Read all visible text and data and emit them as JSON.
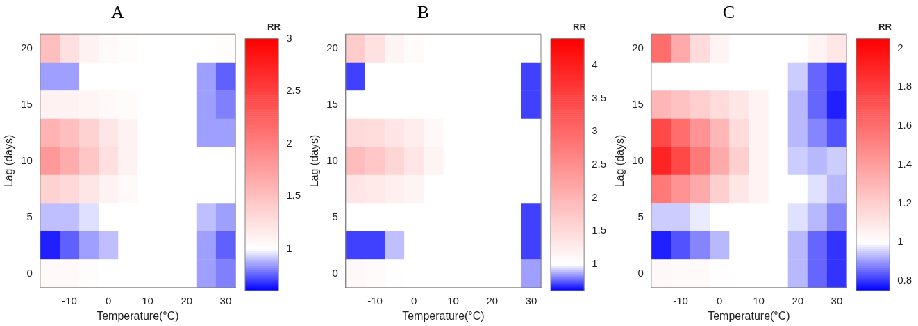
{
  "chart_data": [
    {
      "type": "heatmap",
      "title": "A",
      "xlabel": "Temperature(°C)",
      "ylabel": "Lag (days)",
      "clabel": "RR",
      "clim": [
        0.6,
        3.0
      ],
      "cticks": [
        1.0,
        1.5,
        2.0,
        2.5,
        3.0
      ],
      "categories": [
        null,
        "-10",
        null,
        "0",
        null,
        "10",
        null,
        "20",
        null,
        "30"
      ],
      "y_categories": [
        "20",
        null,
        "15",
        null,
        "10",
        null,
        "5",
        null,
        "0"
      ],
      "cells": [
        [
          1.5,
          1.25,
          1.1,
          1.05,
          1.02,
          1.0,
          1.0,
          1.0,
          1.0,
          1.02
        ],
        [
          0.85,
          0.85,
          1.0,
          1.0,
          1.0,
          1.0,
          1.0,
          1.0,
          0.85,
          0.75
        ],
        [
          1.1,
          1.1,
          1.08,
          1.05,
          1.03,
          1.0,
          1.0,
          1.0,
          0.85,
          0.8
        ],
        [
          1.6,
          1.5,
          1.35,
          1.2,
          1.1,
          1.0,
          1.0,
          1.0,
          0.85,
          0.85
        ],
        [
          1.8,
          1.65,
          1.45,
          1.25,
          1.1,
          1.0,
          1.0,
          1.0,
          1.0,
          1.0
        ],
        [
          1.35,
          1.3,
          1.2,
          1.1,
          1.05,
          1.0,
          1.0,
          1.0,
          1.0,
          1.0
        ],
        [
          0.9,
          0.9,
          0.95,
          1.0,
          1.0,
          1.0,
          1.0,
          1.0,
          0.9,
          0.85
        ],
        [
          0.65,
          0.75,
          0.85,
          0.9,
          1.0,
          1.0,
          1.0,
          1.0,
          0.85,
          0.75
        ],
        [
          1.05,
          1.05,
          1.02,
          1.0,
          1.0,
          1.0,
          1.0,
          1.0,
          0.85,
          0.8
        ]
      ]
    },
    {
      "type": "heatmap",
      "title": "B",
      "xlabel": "Temperature(°C)",
      "ylabel": "Lag (days)",
      "clabel": "RR",
      "clim": [
        0.6,
        4.4
      ],
      "cticks": [
        1.0,
        1.5,
        2.0,
        2.5,
        3.0,
        3.5,
        4.0
      ],
      "categories": [
        null,
        "-10",
        null,
        "0",
        null,
        "10",
        null,
        "20",
        null,
        "30"
      ],
      "y_categories": [
        "20",
        null,
        "15",
        null,
        "10",
        null,
        "5",
        null,
        "0"
      ],
      "cells": [
        [
          1.7,
          1.4,
          1.15,
          1.05,
          1.0,
          1.0,
          1.0,
          1.0,
          1.0,
          1.0
        ],
        [
          0.7,
          1.0,
          1.0,
          1.0,
          1.0,
          1.0,
          1.0,
          1.0,
          1.0,
          0.7
        ],
        [
          1.0,
          1.0,
          1.0,
          1.0,
          1.0,
          1.0,
          1.0,
          1.0,
          1.0,
          0.7
        ],
        [
          1.5,
          1.45,
          1.35,
          1.25,
          1.1,
          1.0,
          1.0,
          1.0,
          1.0,
          1.0
        ],
        [
          1.9,
          1.75,
          1.55,
          1.35,
          1.15,
          1.0,
          1.0,
          1.0,
          1.0,
          1.0
        ],
        [
          1.35,
          1.3,
          1.2,
          1.15,
          1.0,
          1.0,
          1.0,
          1.0,
          1.0,
          1.0
        ],
        [
          1.0,
          1.0,
          1.0,
          1.0,
          1.0,
          1.0,
          1.0,
          1.0,
          1.0,
          0.7
        ],
        [
          0.7,
          0.7,
          0.9,
          1.0,
          1.0,
          1.0,
          1.0,
          1.0,
          1.0,
          0.7
        ],
        [
          1.1,
          1.05,
          1.02,
          1.0,
          1.0,
          1.0,
          1.0,
          1.0,
          1.0,
          0.85
        ]
      ]
    },
    {
      "type": "heatmap",
      "title": "C",
      "xlabel": "Temperature(°C)",
      "ylabel": "Lag (days)",
      "clabel": "RR",
      "clim": [
        0.75,
        2.05
      ],
      "cticks": [
        0.8,
        1.0,
        1.2,
        1.4,
        1.6,
        1.8,
        2.0
      ],
      "categories": [
        null,
        "-10",
        null,
        "0",
        null,
        "10",
        null,
        "20",
        null,
        "30"
      ],
      "y_categories": [
        "20",
        null,
        "15",
        null,
        "10",
        null,
        "5",
        null,
        "0"
      ],
      "cells": [
        [
          1.6,
          1.35,
          1.15,
          1.05,
          1.0,
          1.0,
          1.0,
          1.0,
          1.05,
          1.1
        ],
        [
          1.0,
          1.0,
          1.0,
          1.0,
          1.0,
          1.0,
          1.0,
          0.95,
          0.85,
          0.8
        ],
        [
          1.3,
          1.25,
          1.2,
          1.15,
          1.1,
          1.05,
          1.0,
          0.93,
          0.85,
          0.78
        ],
        [
          1.75,
          1.6,
          1.45,
          1.3,
          1.15,
          1.05,
          1.0,
          0.93,
          0.88,
          0.83
        ],
        [
          1.9,
          1.75,
          1.55,
          1.35,
          1.2,
          1.05,
          1.0,
          0.95,
          0.93,
          0.95
        ],
        [
          1.55,
          1.45,
          1.35,
          1.2,
          1.1,
          1.05,
          1.0,
          1.0,
          0.97,
          0.93
        ],
        [
          0.95,
          0.95,
          0.98,
          1.0,
          1.0,
          1.0,
          1.0,
          0.97,
          0.93,
          0.88
        ],
        [
          0.78,
          0.83,
          0.88,
          0.93,
          1.0,
          1.0,
          1.0,
          0.93,
          0.85,
          0.8
        ],
        [
          1.03,
          1.02,
          1.02,
          1.01,
          1.0,
          1.0,
          1.0,
          0.93,
          0.85,
          0.8
        ]
      ]
    }
  ]
}
